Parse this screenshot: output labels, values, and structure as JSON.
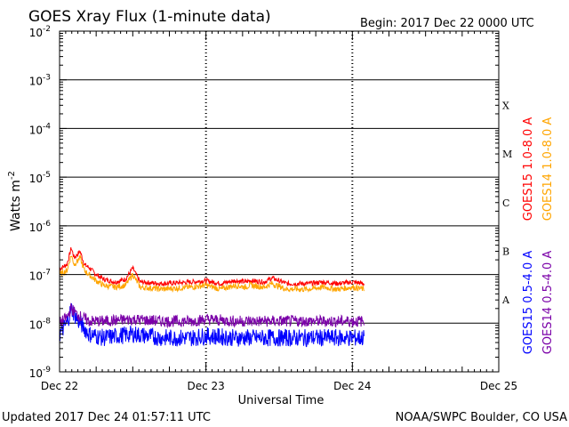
{
  "chart_data": {
    "type": "line",
    "title": "GOES Xray Flux (1-minute data)",
    "begin_label": "Begin:  2017 Dec 22 0000 UTC",
    "xlabel": "Universal Time",
    "ylabel": "Watts m",
    "ylabel_sup": "-2",
    "y_scale": "log",
    "ylim": [
      1e-09,
      0.01
    ],
    "grid": true,
    "y_ticks": [
      {
        "base": "10",
        "exp": "-2",
        "value": 0.01
      },
      {
        "base": "10",
        "exp": "-3",
        "value": 0.001
      },
      {
        "base": "10",
        "exp": "-4",
        "value": 0.0001
      },
      {
        "base": "10",
        "exp": "-5",
        "value": 1e-05
      },
      {
        "base": "10",
        "exp": "-6",
        "value": 1e-06
      },
      {
        "base": "10",
        "exp": "-7",
        "value": 1e-07
      },
      {
        "base": "10",
        "exp": "-8",
        "value": 1e-08
      },
      {
        "base": "10",
        "exp": "-9",
        "value": 1e-09
      }
    ],
    "x_ticks": [
      {
        "label": "Dec 22",
        "day": 0
      },
      {
        "label": "Dec 23",
        "day": 1
      },
      {
        "label": "Dec 24",
        "day": 2
      },
      {
        "label": "Dec 25",
        "day": 3
      }
    ],
    "xlim_days": [
      0,
      3
    ],
    "flare_classes": [
      {
        "label": "X",
        "value": 0.0003
      },
      {
        "label": "M",
        "value": 3e-05
      },
      {
        "label": "C",
        "value": 3e-06
      },
      {
        "label": "B",
        "value": 3e-07
      },
      {
        "label": "A",
        "value": 3e-08
      }
    ],
    "series": [
      {
        "name": "GOES15 1.0-8.0 A",
        "color": "#ff0000",
        "points": [
          [
            0,
            1.3e-07
          ],
          [
            0.05,
            1.6e-07
          ],
          [
            0.08,
            3.5e-07
          ],
          [
            0.1,
            2.2e-07
          ],
          [
            0.14,
            3e-07
          ],
          [
            0.17,
            1.6e-07
          ],
          [
            0.2,
            1.4e-07
          ],
          [
            0.25,
            1e-07
          ],
          [
            0.3,
            8e-08
          ],
          [
            0.38,
            7e-08
          ],
          [
            0.45,
            8e-08
          ],
          [
            0.5,
            1.35e-07
          ],
          [
            0.55,
            7e-08
          ],
          [
            0.7,
            6.5e-08
          ],
          [
            0.9,
            7e-08
          ],
          [
            1.0,
            7.5e-08
          ],
          [
            1.1,
            6.5e-08
          ],
          [
            1.2,
            7.5e-08
          ],
          [
            1.27,
            7e-08
          ],
          [
            1.3,
            7.5e-08
          ],
          [
            1.4,
            7e-08
          ],
          [
            1.45,
            8.5e-08
          ],
          [
            1.55,
            6.5e-08
          ],
          [
            1.7,
            6.5e-08
          ],
          [
            1.8,
            7e-08
          ],
          [
            1.9,
            6.5e-08
          ],
          [
            2.0,
            7e-08
          ],
          [
            2.08,
            6.5e-08
          ]
        ]
      },
      {
        "name": "GOES14 1.0-8.0 A",
        "color": "#ffa500",
        "points": [
          [
            0,
            1e-07
          ],
          [
            0.05,
            1.2e-07
          ],
          [
            0.08,
            2.5e-07
          ],
          [
            0.1,
            1.6e-07
          ],
          [
            0.14,
            2.2e-07
          ],
          [
            0.17,
            1.2e-07
          ],
          [
            0.2,
            1e-07
          ],
          [
            0.25,
            7.5e-08
          ],
          [
            0.3,
            6e-08
          ],
          [
            0.38,
            5.5e-08
          ],
          [
            0.45,
            6e-08
          ],
          [
            0.5,
            1e-07
          ],
          [
            0.55,
            5.5e-08
          ],
          [
            0.7,
            5e-08
          ],
          [
            0.9,
            5.5e-08
          ],
          [
            1.0,
            6e-08
          ],
          [
            1.1,
            5e-08
          ],
          [
            1.2,
            6e-08
          ],
          [
            1.27,
            5.5e-08
          ],
          [
            1.3,
            6e-08
          ],
          [
            1.4,
            5.5e-08
          ],
          [
            1.45,
            6.5e-08
          ],
          [
            1.55,
            5e-08
          ],
          [
            1.7,
            5e-08
          ],
          [
            1.8,
            5.5e-08
          ],
          [
            1.9,
            5e-08
          ],
          [
            2.0,
            5.5e-08
          ],
          [
            2.08,
            5e-08
          ]
        ]
      },
      {
        "name": "GOES15 0.5-4.0 A",
        "color": "#0000ff",
        "points": [
          [
            0,
            6e-09
          ],
          [
            0.05,
            1e-08
          ],
          [
            0.08,
            2e-08
          ],
          [
            0.12,
            1.2e-08
          ],
          [
            0.2,
            6e-09
          ],
          [
            0.3,
            5e-09
          ],
          [
            0.5,
            6e-09
          ],
          [
            0.7,
            5e-09
          ],
          [
            0.9,
            5e-09
          ],
          [
            1.0,
            5.5e-09
          ],
          [
            1.2,
            5e-09
          ],
          [
            1.4,
            5e-09
          ],
          [
            1.6,
            5e-09
          ],
          [
            1.8,
            5e-09
          ],
          [
            2.0,
            5e-09
          ],
          [
            2.08,
            5e-09
          ]
        ]
      },
      {
        "name": "GOES14 0.5-4.0 A",
        "color": "#7a00a8",
        "points": [
          [
            0,
            1e-08
          ],
          [
            0.05,
            1.3e-08
          ],
          [
            0.08,
            2e-08
          ],
          [
            0.12,
            1.5e-08
          ],
          [
            0.2,
            1.1e-08
          ],
          [
            0.3,
            1.1e-08
          ],
          [
            0.5,
            1.2e-08
          ],
          [
            0.7,
            1.1e-08
          ],
          [
            0.9,
            1.1e-08
          ],
          [
            1.0,
            1.2e-08
          ],
          [
            1.2,
            1.1e-08
          ],
          [
            1.4,
            1.1e-08
          ],
          [
            1.6,
            1.1e-08
          ],
          [
            1.8,
            1.1e-08
          ],
          [
            2.0,
            1.1e-08
          ],
          [
            2.08,
            1.1e-08
          ]
        ]
      }
    ]
  },
  "footer": {
    "updated": "Updated 2017 Dec 24 01:57:11 UTC",
    "credit": "NOAA/SWPC Boulder, CO USA"
  }
}
